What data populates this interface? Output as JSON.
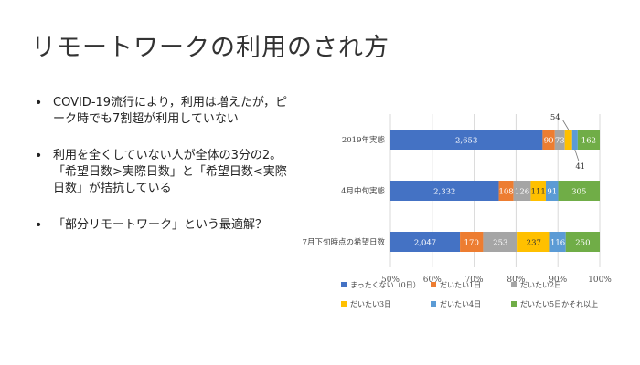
{
  "slide": {
    "title": "リモートワークの利用のされ方",
    "bullets": [
      "COVID-19流行により，利用は増えたが，ピーク時でも7割超が利用していない",
      "利用を全くしていない人が全体の3分の2。「希望日数>実際日数」と「希望日数<実際日数」が拮抗している",
      "「部分リモートワーク」という最適解？"
    ]
  },
  "chart_data": {
    "type": "bar",
    "orientation": "horizontal",
    "stacked": "percent",
    "categories": [
      "2019年実態",
      "4月中旬実態",
      "7月下旬時点の希望日数"
    ],
    "series": [
      {
        "name": "まったくない（0日）",
        "color": "#4472C4",
        "values": [
          2653,
          2332,
          2047
        ]
      },
      {
        "name": "だいたい1日",
        "color": "#ED7D31",
        "values": [
          90,
          108,
          170
        ]
      },
      {
        "name": "だいたい2日",
        "color": "#A5A5A5",
        "values": [
          73,
          126,
          253
        ]
      },
      {
        "name": "だいたい3日",
        "color": "#FFC000",
        "values": [
          54,
          111,
          237
        ]
      },
      {
        "name": "だいたい4日",
        "color": "#5B9BD5",
        "values": [
          41,
          91,
          116
        ]
      },
      {
        "name": "だいたい5日かそれ以上",
        "color": "#70AD47",
        "values": [
          162,
          305,
          250
        ]
      }
    ],
    "data_labels": [
      [
        "2,653",
        "90",
        "73",
        "54",
        "41",
        "162"
      ],
      [
        "2,332",
        "108",
        "126",
        "111",
        "91",
        "305"
      ],
      [
        "2,047",
        "170",
        "253",
        "237",
        "116",
        "250"
      ]
    ],
    "xlim": [
      0.5,
      1.0
    ],
    "xticks": [
      "50%",
      "60%",
      "70%",
      "80%",
      "90%",
      "100%"
    ],
    "grid": true,
    "legend": "bottom"
  }
}
